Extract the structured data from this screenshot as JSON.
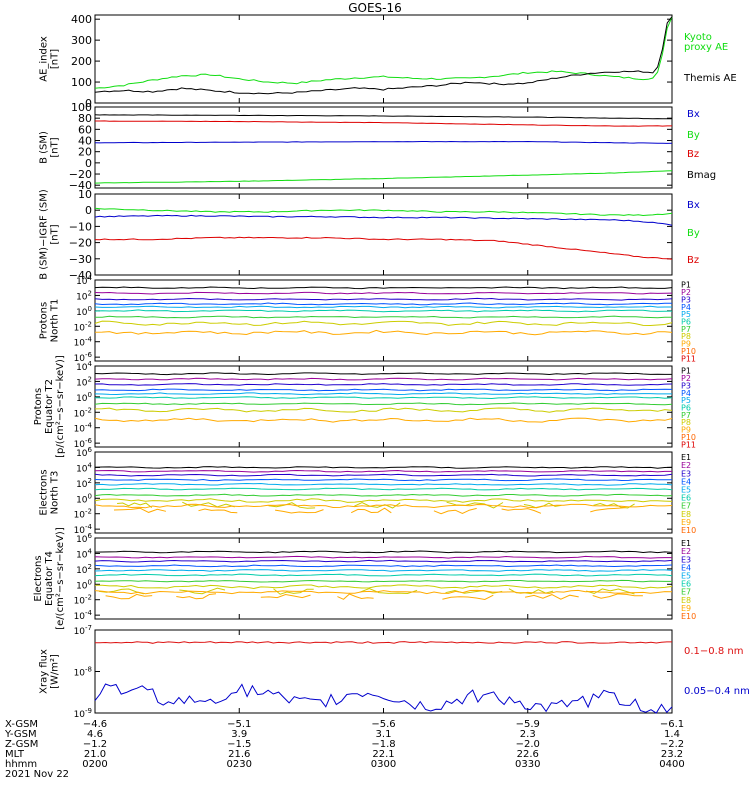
{
  "title": "GOES-16",
  "colors": {
    "black": "#000000",
    "green": "#11dd11",
    "blue": "#0000cc",
    "red": "#dd0000",
    "xray_red": "#dd1111",
    "P": [
      "#000000",
      "#990099",
      "#2200cc",
      "#0055ff",
      "#00aaee",
      "#00ccaa",
      "#33cc33",
      "#cccc00",
      "#ffaa00",
      "#ff6600",
      "#dd0000"
    ],
    "E": [
      "#000000",
      "#990099",
      "#2200cc",
      "#0055ff",
      "#00aaee",
      "#00ccaa",
      "#33cc33",
      "#cccc00",
      "#ffaa00",
      "#ff6600",
      "#dd0000"
    ]
  },
  "chart_data": [
    {
      "id": "ae",
      "type": "line",
      "ylabel": "AE_index",
      "yunit": "[nT]",
      "ylim": [
        0,
        420
      ],
      "yticks": [
        "0",
        "100",
        "200",
        "300",
        "400"
      ],
      "ytick_values": [
        0,
        100,
        200,
        300,
        400
      ],
      "legend_lines": [
        {
          "text": "Kyoto",
          "color": "#11dd11"
        },
        {
          "text": "proxy AE",
          "color": "#11dd11"
        },
        {
          "text": "Themis AE",
          "color": "#000000"
        }
      ],
      "series": [
        {
          "name": "Kyoto proxy AE",
          "color": "#11dd11",
          "x": [
            0,
            0.05,
            0.1,
            0.15,
            0.2,
            0.25,
            0.3,
            0.35,
            0.4,
            0.45,
            0.5,
            0.55,
            0.6,
            0.65,
            0.7,
            0.75,
            0.8,
            0.85,
            0.9,
            0.95,
            0.97,
            0.98,
            0.99,
            1.0
          ],
          "y": [
            70,
            85,
            110,
            130,
            135,
            115,
            100,
            95,
            110,
            120,
            125,
            118,
            115,
            118,
            130,
            145,
            150,
            140,
            125,
            115,
            120,
            170,
            350,
            410
          ]
        },
        {
          "name": "Themis AE",
          "color": "#000000",
          "x": [
            0,
            0.05,
            0.1,
            0.15,
            0.2,
            0.25,
            0.3,
            0.35,
            0.4,
            0.45,
            0.5,
            0.55,
            0.6,
            0.65,
            0.7,
            0.75,
            0.8,
            0.85,
            0.9,
            0.95,
            0.97,
            0.98,
            0.99,
            1.0
          ],
          "y": [
            55,
            60,
            55,
            70,
            60,
            50,
            45,
            50,
            60,
            70,
            65,
            75,
            85,
            100,
            90,
            95,
            120,
            140,
            150,
            150,
            145,
            200,
            380,
            410
          ]
        }
      ]
    },
    {
      "id": "bsm",
      "type": "line",
      "ylabel": "B (SM)",
      "yunit": "[nT]",
      "ylim": [
        -45,
        100
      ],
      "yticks": [
        "100",
        "80",
        "60",
        "40",
        "20",
        "0",
        "−20",
        "−40"
      ],
      "ytick_values": [
        100,
        80,
        60,
        40,
        20,
        0,
        -20,
        -40
      ],
      "legend_lines": [
        {
          "text": "Bx",
          "color": "#0000cc"
        },
        {
          "text": "By",
          "color": "#11dd11"
        },
        {
          "text": "Bz",
          "color": "#dd0000"
        },
        {
          "text": "Bmag",
          "color": "#000000"
        }
      ],
      "series": [
        {
          "name": "Bmag",
          "color": "#000000",
          "x": [
            0,
            0.25,
            0.5,
            0.75,
            0.9,
            1.0
          ],
          "y": [
            86,
            85,
            84,
            82,
            80,
            79
          ]
        },
        {
          "name": "Bz",
          "color": "#dd0000",
          "x": [
            0,
            0.25,
            0.5,
            0.75,
            0.9,
            1.0
          ],
          "y": [
            75,
            74,
            72,
            68,
            66,
            66
          ]
        },
        {
          "name": "Bx",
          "color": "#0000cc",
          "x": [
            0,
            0.25,
            0.5,
            0.75,
            0.9,
            1.0
          ],
          "y": [
            36,
            37,
            38,
            38,
            36,
            35
          ]
        },
        {
          "name": "By",
          "color": "#11dd11",
          "x": [
            0,
            0.25,
            0.5,
            0.75,
            0.9,
            1.0
          ],
          "y": [
            -36,
            -33,
            -28,
            -22,
            -18,
            -14
          ]
        }
      ]
    },
    {
      "id": "bigrf",
      "type": "line",
      "ylabel": "B (SM)−IGRF (SM)",
      "yunit": "[nT]",
      "ylim": [
        -40,
        10
      ],
      "yticks": [
        "10",
        "0",
        "−10",
        "−20",
        "−30",
        "−40"
      ],
      "ytick_values": [
        10,
        0,
        -10,
        -20,
        -30,
        -40
      ],
      "legend_lines": [
        {
          "text": "Bx",
          "color": "#0000cc"
        },
        {
          "text": "By",
          "color": "#11dd11"
        },
        {
          "text": "Bz",
          "color": "#dd0000"
        }
      ],
      "series": [
        {
          "name": "By",
          "color": "#11dd11",
          "x": [
            0,
            0.1,
            0.2,
            0.3,
            0.4,
            0.5,
            0.6,
            0.7,
            0.8,
            0.9,
            0.95,
            1.0
          ],
          "y": [
            1,
            0,
            -1,
            -1,
            0,
            0,
            -1,
            -1,
            -2,
            -3,
            -3,
            -2
          ]
        },
        {
          "name": "Bx",
          "color": "#0000cc",
          "x": [
            0,
            0.1,
            0.2,
            0.3,
            0.4,
            0.5,
            0.6,
            0.7,
            0.8,
            0.9,
            0.95,
            1.0
          ],
          "y": [
            -4,
            -3.5,
            -3.5,
            -4,
            -4,
            -4.5,
            -4.5,
            -5,
            -5.5,
            -6,
            -7,
            -9
          ]
        },
        {
          "name": "Bz",
          "color": "#dd0000",
          "x": [
            0,
            0.1,
            0.2,
            0.3,
            0.4,
            0.5,
            0.6,
            0.7,
            0.75,
            0.8,
            0.85,
            0.9,
            0.95,
            1.0
          ],
          "y": [
            -18,
            -18,
            -17,
            -17,
            -17,
            -18,
            -18,
            -19,
            -21,
            -23,
            -25,
            -27,
            -29,
            -30
          ]
        }
      ]
    },
    {
      "id": "pnorth",
      "type": "line",
      "log": true,
      "ylabel": "Protons",
      "ylabel2": "North T1",
      "ylim_exp": [
        -6.5,
        4
      ],
      "ytick_exps": [
        4,
        2,
        0,
        -2,
        -4,
        -6
      ],
      "legend_lines": [
        "P1",
        "P2",
        "P3",
        "P4",
        "P5",
        "P6",
        "P7",
        "P8",
        "P9",
        "P10",
        "P11"
      ],
      "levels": [
        3.0,
        2.3,
        1.5,
        0.9,
        0.5,
        0.0,
        -0.8,
        -1.6,
        -2.8
      ]
    },
    {
      "id": "pequator",
      "type": "line",
      "log": true,
      "ylabel": "Protons",
      "ylabel2": "Equator T2",
      "yunit": "[p/(cm²−s−sr−keV)]",
      "ylim_exp": [
        -6.5,
        4
      ],
      "ytick_exps": [
        4,
        2,
        0,
        -2,
        -4,
        -6
      ],
      "legend_lines": [
        "P1",
        "P2",
        "P3",
        "P4",
        "P5",
        "P6",
        "P7",
        "P8",
        "P9",
        "P10",
        "P11"
      ],
      "levels": [
        3.0,
        2.3,
        1.6,
        0.9,
        0.4,
        -0.1,
        -0.9,
        -1.7,
        -3.0
      ]
    },
    {
      "id": "enorth",
      "type": "line",
      "log": true,
      "ylabel": "Electrons",
      "ylabel2": "North T3",
      "ylim_exp": [
        -4.5,
        6
      ],
      "ytick_exps": [
        6,
        4,
        2,
        0,
        -2,
        -4
      ],
      "legend_lines": [
        "E1",
        "E2",
        "E3",
        "E4",
        "E5",
        "E6",
        "E7",
        "E8",
        "E9",
        "E10"
      ],
      "levels": [
        4.0,
        3.5,
        3.0,
        2.4,
        1.8,
        1.2,
        0.4,
        -0.3,
        -1.0
      ]
    },
    {
      "id": "eequator",
      "type": "line",
      "log": true,
      "ylabel": "Electrons",
      "ylabel2": "Equator T4",
      "yunit": "[e/(cm²−s−sr−keV)]",
      "ylim_exp": [
        -4.5,
        6
      ],
      "ytick_exps": [
        6,
        4,
        2,
        0,
        -2,
        -4
      ],
      "legend_lines": [
        "E1",
        "E2",
        "E3",
        "E4",
        "E5",
        "E6",
        "E7",
        "E8",
        "E9",
        "E10"
      ],
      "levels": [
        4.2,
        3.5,
        3.0,
        2.4,
        1.8,
        1.2,
        0.4,
        -0.3,
        -1.0
      ]
    },
    {
      "id": "xray",
      "type": "line",
      "log": true,
      "ylabel": "Xray flux",
      "yunit": "[W/m²]",
      "ylim_exp": [
        -9,
        -7
      ],
      "ytick_exps": [
        -7,
        -8,
        -9
      ],
      "legend_lines": [
        {
          "text": "0.1−0.8 nm",
          "color": "#dd1111"
        },
        {
          "text": "0.05−0.4 nm",
          "color": "#0000cc"
        }
      ],
      "series": [
        {
          "name": "0.1−0.8 nm",
          "color": "#dd1111",
          "level": -7.3
        },
        {
          "name": "0.05−0.4 nm",
          "color": "#0000cc",
          "level": -8.55
        }
      ]
    }
  ],
  "xaxis": {
    "row_labels": [
      "X-GSM",
      "Y-GSM",
      "Z-GSM",
      "MLT",
      "hhmm",
      "2021 Nov 22"
    ],
    "ticks": [
      {
        "x": 0.0,
        "vals": [
          "−4.6",
          "4.6",
          "−1.2",
          "21.0",
          "0200"
        ]
      },
      {
        "x": 0.25,
        "vals": [
          "−5.1",
          "3.9",
          "−1.5",
          "21.6",
          "0230"
        ]
      },
      {
        "x": 0.5,
        "vals": [
          "−5.6",
          "3.1",
          "−1.8",
          "22.1",
          "0300"
        ]
      },
      {
        "x": 0.75,
        "vals": [
          "−5.9",
          "2.3",
          "−2.0",
          "22.6",
          "0330"
        ]
      },
      {
        "x": 1.0,
        "vals": [
          "−6.1",
          "1.4",
          "−2.2",
          "23.2",
          "0400"
        ]
      }
    ]
  }
}
